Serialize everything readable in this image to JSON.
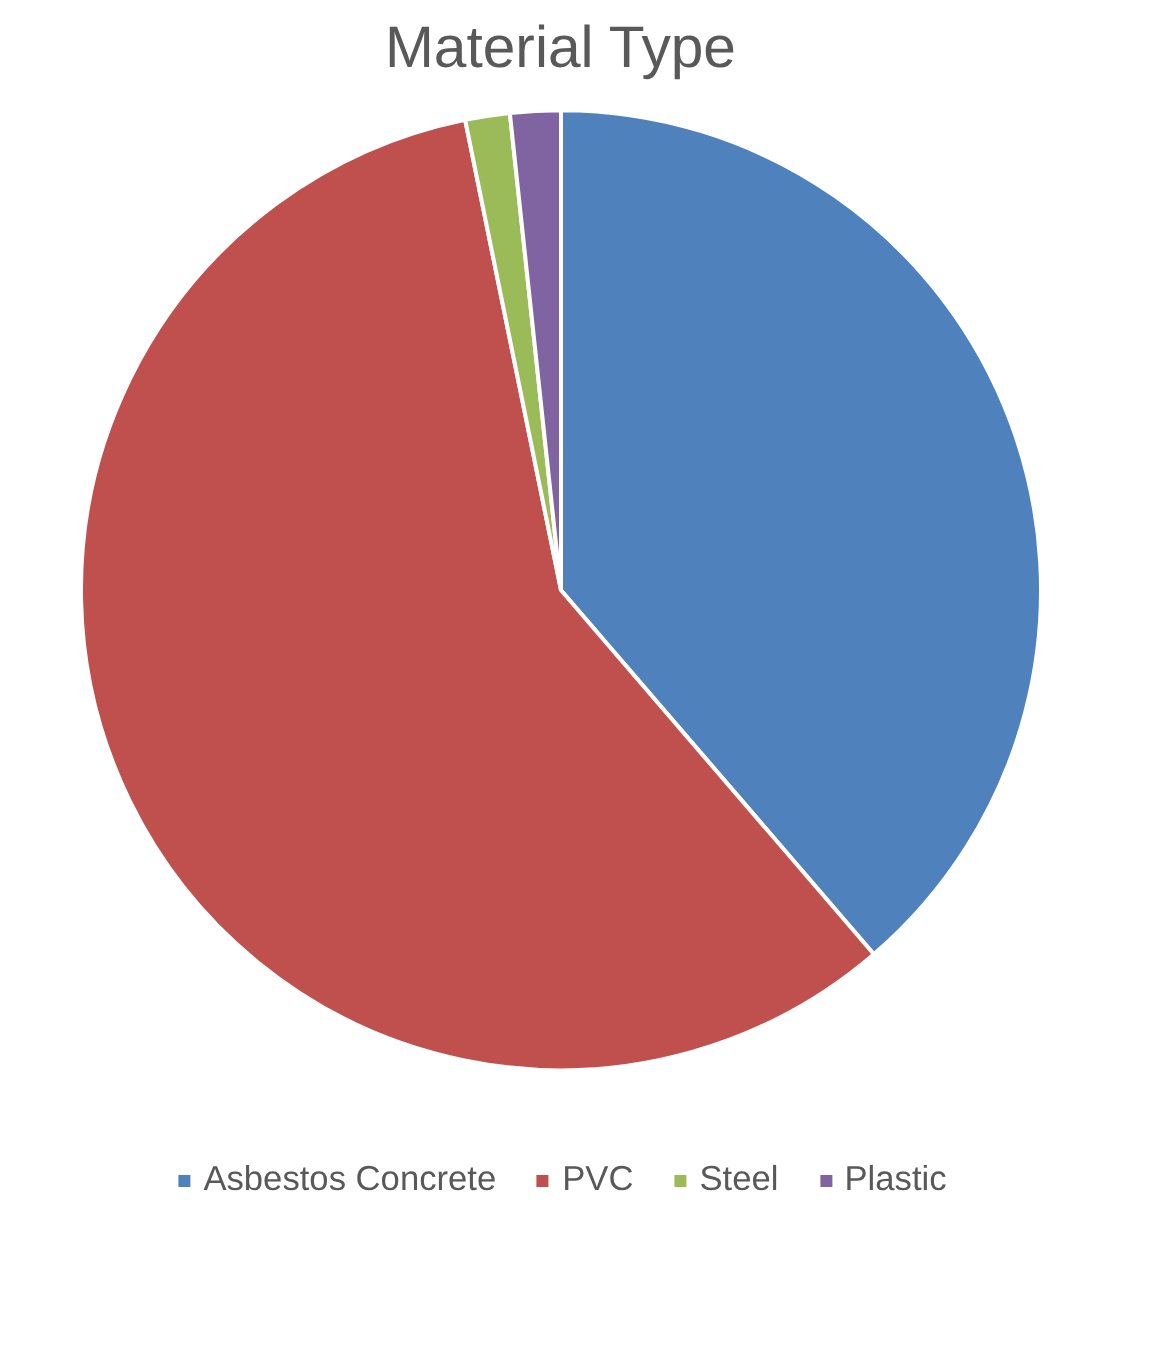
{
  "chart_data": {
    "type": "pie",
    "title": "Material Type",
    "categories": [
      "Asbestos Concrete",
      "PVC",
      "Steel",
      "Plastic"
    ],
    "values": [
      38.7,
      58.1,
      1.5,
      1.7
    ],
    "colors": [
      "#4f81bd",
      "#c0504d",
      "#9bbb59",
      "#8064a2"
    ],
    "legend": "bottom"
  }
}
